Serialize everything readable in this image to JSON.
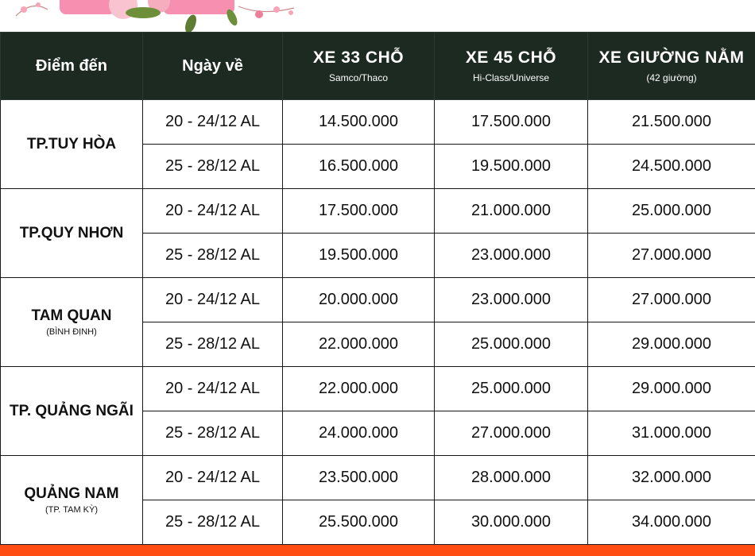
{
  "colors": {
    "header_bg": "#1d2a22",
    "header_text": "#ffffff",
    "accent_bar": "#ff4d14",
    "flower_pink": "#f7a6b8"
  },
  "table": {
    "headers": [
      {
        "title": "Điểm đến",
        "sub": ""
      },
      {
        "title": "Ngày về",
        "sub": ""
      },
      {
        "title": "XE 33 CHỖ",
        "sub": "Samco/Thaco"
      },
      {
        "title": "XE 45 CHỖ",
        "sub": "Hi-Class/Universe"
      },
      {
        "title": "XE GIƯỜNG NẰM",
        "sub": "(42 giường)"
      }
    ],
    "groups": [
      {
        "name": "TP.TUY HÒA",
        "sub": "",
        "rows": [
          {
            "date": "20 - 24/12 AL",
            "p33": "14.500.000",
            "p45": "17.500.000",
            "pbed": "21.500.000"
          },
          {
            "date": "25 - 28/12 AL",
            "p33": "16.500.000",
            "p45": "19.500.000",
            "pbed": "24.500.000"
          }
        ]
      },
      {
        "name": "TP.QUY NHƠN",
        "sub": "",
        "rows": [
          {
            "date": "20 - 24/12 AL",
            "p33": "17.500.000",
            "p45": "21.000.000",
            "pbed": "25.000.000"
          },
          {
            "date": "25 - 28/12 AL",
            "p33": "19.500.000",
            "p45": "23.000.000",
            "pbed": "27.000.000"
          }
        ]
      },
      {
        "name": "TAM QUAN",
        "sub": "(BÌNH ĐỊNH)",
        "rows": [
          {
            "date": "20 - 24/12 AL",
            "p33": "20.000.000",
            "p45": "23.000.000",
            "pbed": "27.000.000"
          },
          {
            "date": "25 - 28/12 AL",
            "p33": "22.000.000",
            "p45": "25.000.000",
            "pbed": "29.000.000"
          }
        ]
      },
      {
        "name": "TP. QUẢNG NGÃI",
        "sub": "",
        "rows": [
          {
            "date": "20 - 24/12 AL",
            "p33": "22.000.000",
            "p45": "25.000.000",
            "pbed": "29.000.000"
          },
          {
            "date": "25 - 28/12 AL",
            "p33": "24.000.000",
            "p45": "27.000.000",
            "pbed": "31.000.000"
          }
        ]
      },
      {
        "name": "QUẢNG NAM",
        "sub": "(TP. TAM KỲ)",
        "rows": [
          {
            "date": "20 - 24/12 AL",
            "p33": "23.500.000",
            "p45": "28.000.000",
            "pbed": "32.000.000"
          },
          {
            "date": "25 - 28/12 AL",
            "p33": "25.500.000",
            "p45": "30.000.000",
            "pbed": "34.000.000"
          }
        ]
      }
    ]
  }
}
